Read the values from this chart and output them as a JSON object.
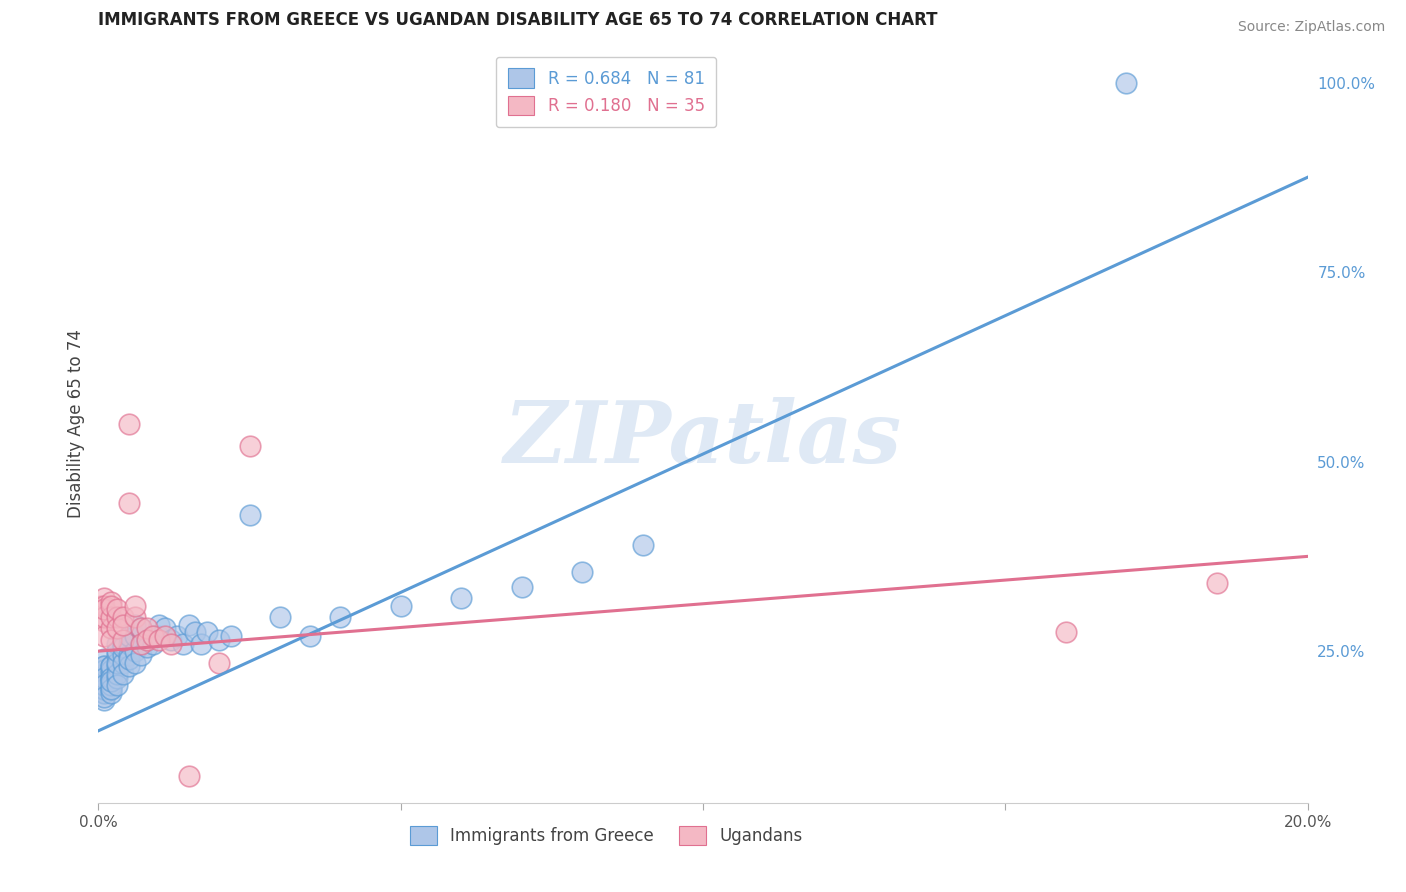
{
  "title": "IMMIGRANTS FROM GREECE VS UGANDAN DISABILITY AGE 65 TO 74 CORRELATION CHART",
  "source": "Source: ZipAtlas.com",
  "ylabel": "Disability Age 65 to 74",
  "xlim": [
    0.0,
    0.2
  ],
  "ylim": [
    0.05,
    1.05
  ],
  "x_ticks": [
    0.0,
    0.05,
    0.1,
    0.15,
    0.2
  ],
  "x_tick_labels": [
    "0.0%",
    "",
    "",
    "",
    "20.0%"
  ],
  "y_ticks_right": [
    0.25,
    0.5,
    0.75,
    1.0
  ],
  "y_tick_labels_right": [
    "25.0%",
    "50.0%",
    "75.0%",
    "100.0%"
  ],
  "legend1_label": "R = 0.684   N = 81",
  "legend2_label": "R = 0.180   N = 35",
  "legend_bottom1": "Immigrants from Greece",
  "legend_bottom2": "Ugandans",
  "blue_color": "#aec6e8",
  "blue_edge_color": "#5b9bd5",
  "pink_color": "#f4b8c4",
  "pink_edge_color": "#e07090",
  "blue_line_color": "#5b9bd5",
  "pink_line_color": "#e07090",
  "watermark": "ZIPatlas",
  "blue_scatter_x": [
    0.0005,
    0.0008,
    0.001,
    0.001,
    0.001,
    0.001,
    0.001,
    0.001,
    0.001,
    0.001,
    0.001,
    0.001,
    0.001,
    0.001,
    0.001,
    0.001,
    0.001,
    0.001,
    0.002,
    0.002,
    0.002,
    0.002,
    0.002,
    0.002,
    0.002,
    0.002,
    0.002,
    0.002,
    0.002,
    0.002,
    0.003,
    0.003,
    0.003,
    0.003,
    0.003,
    0.003,
    0.003,
    0.003,
    0.004,
    0.004,
    0.004,
    0.004,
    0.004,
    0.005,
    0.005,
    0.005,
    0.005,
    0.005,
    0.006,
    0.006,
    0.006,
    0.006,
    0.007,
    0.007,
    0.007,
    0.008,
    0.008,
    0.009,
    0.009,
    0.01,
    0.01,
    0.011,
    0.012,
    0.013,
    0.014,
    0.015,
    0.016,
    0.017,
    0.018,
    0.02,
    0.022,
    0.025,
    0.03,
    0.035,
    0.04,
    0.05,
    0.06,
    0.07,
    0.08,
    0.09,
    0.17
  ],
  "blue_scatter_y": [
    0.225,
    0.21,
    0.23,
    0.215,
    0.2,
    0.195,
    0.185,
    0.22,
    0.2,
    0.24,
    0.225,
    0.21,
    0.195,
    0.23,
    0.2,
    0.215,
    0.205,
    0.19,
    0.22,
    0.21,
    0.23,
    0.2,
    0.215,
    0.225,
    0.195,
    0.205,
    0.23,
    0.215,
    0.2,
    0.21,
    0.245,
    0.23,
    0.215,
    0.26,
    0.22,
    0.235,
    0.205,
    0.25,
    0.245,
    0.26,
    0.235,
    0.22,
    0.255,
    0.245,
    0.26,
    0.23,
    0.27,
    0.24,
    0.25,
    0.27,
    0.285,
    0.235,
    0.26,
    0.245,
    0.28,
    0.265,
    0.255,
    0.26,
    0.27,
    0.27,
    0.285,
    0.28,
    0.265,
    0.27,
    0.26,
    0.285,
    0.275,
    0.26,
    0.275,
    0.265,
    0.27,
    0.43,
    0.295,
    0.27,
    0.295,
    0.31,
    0.32,
    0.335,
    0.355,
    0.39,
    1.0
  ],
  "pink_scatter_x": [
    0.0005,
    0.001,
    0.001,
    0.001,
    0.001,
    0.001,
    0.001,
    0.002,
    0.002,
    0.002,
    0.002,
    0.002,
    0.003,
    0.003,
    0.003,
    0.004,
    0.004,
    0.004,
    0.005,
    0.005,
    0.006,
    0.006,
    0.007,
    0.007,
    0.008,
    0.008,
    0.009,
    0.01,
    0.011,
    0.012,
    0.015,
    0.02,
    0.025,
    0.16,
    0.185
  ],
  "pink_scatter_y": [
    0.31,
    0.32,
    0.29,
    0.27,
    0.31,
    0.295,
    0.305,
    0.28,
    0.315,
    0.295,
    0.265,
    0.31,
    0.295,
    0.28,
    0.305,
    0.295,
    0.265,
    0.285,
    0.55,
    0.445,
    0.295,
    0.31,
    0.28,
    0.26,
    0.28,
    0.265,
    0.27,
    0.265,
    0.27,
    0.26,
    0.085,
    0.235,
    0.52,
    0.275,
    0.34
  ],
  "blue_line_pts": [
    [
      0.0,
      0.145
    ],
    [
      0.2,
      0.875
    ]
  ],
  "pink_line_pts": [
    [
      0.0,
      0.25
    ],
    [
      0.2,
      0.375
    ]
  ]
}
